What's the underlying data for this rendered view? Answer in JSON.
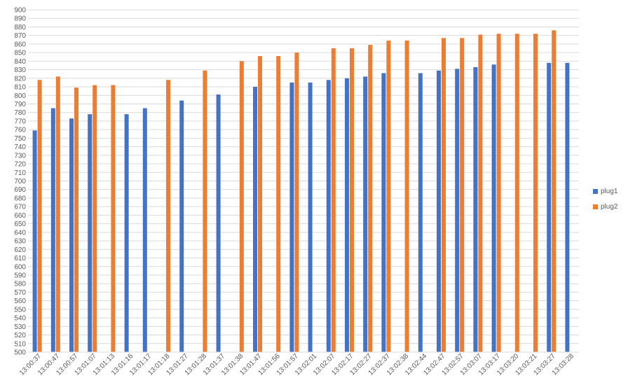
{
  "chart_data": {
    "type": "bar",
    "title": "",
    "xlabel": "",
    "ylabel": "",
    "ylim": [
      500,
      900
    ],
    "y_tick_step": 10,
    "grid": true,
    "legend_position": "right",
    "categories": [
      "13:00:37",
      "13:00:47",
      "13:00:57",
      "13:01:07",
      "13:01:13",
      "13:01:16",
      "13:01:17",
      "13:01:18",
      "13:01:27",
      "13:01:28",
      "13:01:37",
      "13:01:38",
      "13:01:47",
      "13:01:56",
      "13:01:57",
      "13:02:01",
      "13:02:07",
      "13:02:17",
      "13:02:27",
      "13:02:37",
      "13:02:38",
      "13:02:44",
      "13:02:47",
      "13:02:57",
      "13:03:07",
      "13:03:17",
      "13:03:20",
      "13:03:21",
      "13:03:27",
      "13:03:28"
    ],
    "series": [
      {
        "name": "plug1",
        "color": "#4472C4",
        "values": [
          759,
          785,
          773,
          778,
          null,
          778,
          785,
          null,
          794,
          null,
          801,
          null,
          810,
          null,
          815,
          815,
          818,
          820,
          822,
          826,
          null,
          826,
          829,
          831,
          833,
          836,
          null,
          null,
          838,
          838
        ]
      },
      {
        "name": "plug2",
        "color": "#ED7D31",
        "values": [
          818,
          822,
          809,
          812,
          812,
          null,
          null,
          818,
          null,
          829,
          null,
          840,
          846,
          846,
          850,
          null,
          855,
          855,
          859,
          864,
          864,
          null,
          867,
          867,
          871,
          872,
          872,
          872,
          876,
          null
        ]
      }
    ]
  }
}
